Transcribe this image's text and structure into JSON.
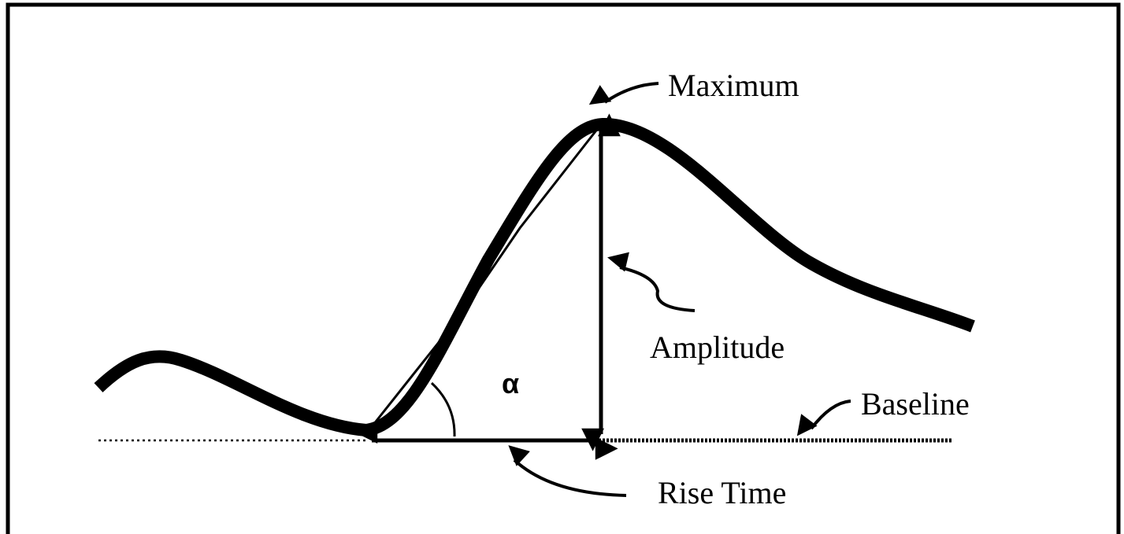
{
  "labels": {
    "maximum": "Maximum",
    "amplitude": "Amplitude",
    "baseline": "Baseline",
    "rise_time": "Rise Time",
    "alpha": "α"
  }
}
